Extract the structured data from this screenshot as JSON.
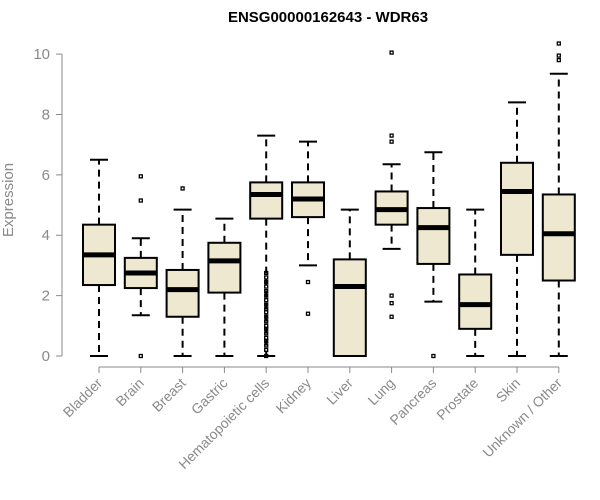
{
  "chart_data": {
    "type": "boxplot",
    "title": "ENSG00000162643 - WDR63",
    "xlabel": "",
    "ylabel": "Expression",
    "ylim": [
      0,
      10.4
    ],
    "yticks": [
      0,
      2,
      4,
      6,
      8,
      10
    ],
    "categories": [
      "Bladder",
      "Brain",
      "Breast",
      "Gastric",
      "Hematopoietic cells",
      "Kidney",
      "Liver",
      "Lung",
      "Pancreas",
      "Prostate",
      "Skin",
      "Unknown / Other"
    ],
    "boxes": [
      {
        "category": "Bladder",
        "min": 0,
        "q1": 2.35,
        "median": 3.35,
        "q3": 4.35,
        "max": 6.5,
        "outliers": []
      },
      {
        "category": "Brain",
        "min": 1.35,
        "q1": 2.25,
        "median": 2.75,
        "q3": 3.25,
        "max": 3.9,
        "outliers": [
          0,
          5.15,
          5.95
        ]
      },
      {
        "category": "Breast",
        "min": 0,
        "q1": 1.3,
        "median": 2.2,
        "q3": 2.85,
        "max": 4.85,
        "outliers": [
          5.55
        ]
      },
      {
        "category": "Gastric",
        "min": 0,
        "q1": 2.1,
        "median": 3.15,
        "q3": 3.75,
        "max": 4.55,
        "outliers": []
      },
      {
        "category": "Hematopoietic cells",
        "min": 0,
        "q1": 4.55,
        "median": 5.35,
        "q3": 5.75,
        "max": 7.3,
        "outliers": [
          0,
          0.2,
          0.35,
          0.5,
          0.6,
          0.75,
          0.9,
          1.0,
          1.15,
          1.3,
          1.45,
          1.55,
          1.7,
          1.85,
          2.0,
          2.15,
          2.3,
          2.45,
          2.6,
          2.75
        ]
      },
      {
        "category": "Kidney",
        "min": 3.0,
        "q1": 4.6,
        "median": 5.2,
        "q3": 5.75,
        "max": 7.1,
        "outliers": [
          1.4,
          2.45
        ]
      },
      {
        "category": "Liver",
        "min": 0,
        "q1": 0,
        "median": 2.3,
        "q3": 3.2,
        "max": 4.85,
        "outliers": []
      },
      {
        "category": "Lung",
        "min": 3.55,
        "q1": 4.35,
        "median": 4.85,
        "q3": 5.45,
        "max": 6.35,
        "outliers": [
          1.3,
          1.75,
          2.0,
          7.1,
          7.3,
          10.05
        ]
      },
      {
        "category": "Pancreas",
        "min": 1.8,
        "q1": 3.05,
        "median": 4.25,
        "q3": 4.9,
        "max": 6.75,
        "outliers": [
          0
        ]
      },
      {
        "category": "Prostate",
        "min": 0,
        "q1": 0.9,
        "median": 1.7,
        "q3": 2.7,
        "max": 4.85,
        "outliers": []
      },
      {
        "category": "Skin",
        "min": 0,
        "q1": 3.35,
        "median": 5.45,
        "q3": 6.4,
        "max": 8.4,
        "outliers": []
      },
      {
        "category": "Unknown / Other",
        "min": 0,
        "q1": 2.5,
        "median": 4.05,
        "q3": 5.35,
        "max": 9.35,
        "outliers": [
          9.8,
          9.95,
          10.35
        ]
      }
    ]
  }
}
